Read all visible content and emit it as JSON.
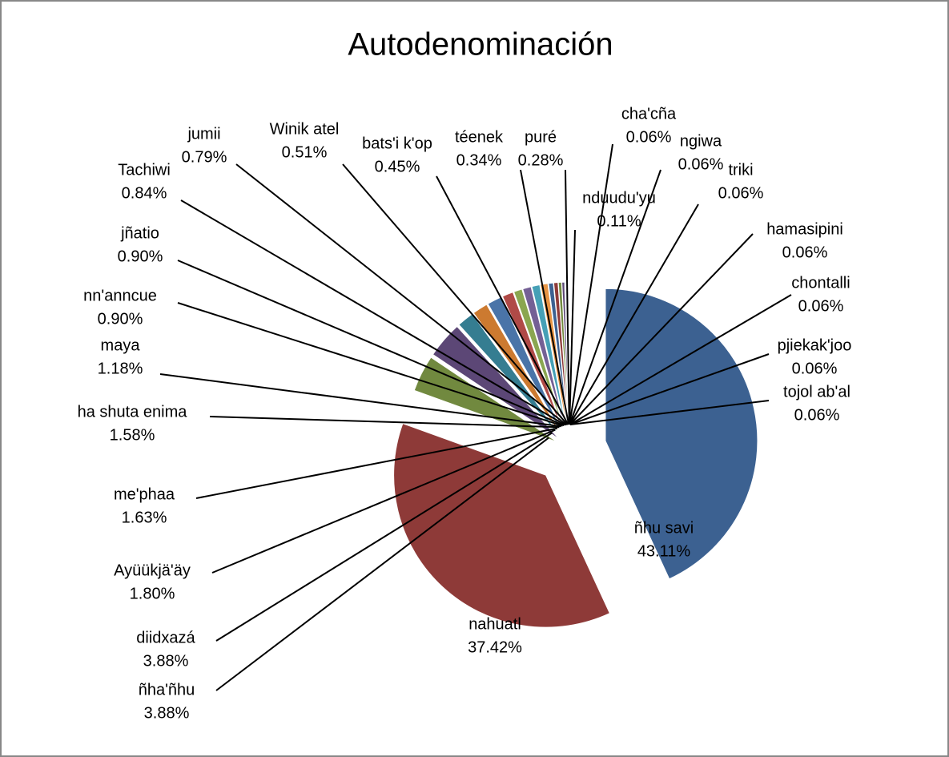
{
  "chart_data": {
    "type": "pie",
    "title": "Autodenominación",
    "categories": [
      "ñhu savi",
      "nahuatl",
      "ñha'ñhu",
      "diidxazá",
      "Ayüükjä'äy",
      "me'phaa",
      "ha shuta enima",
      "maya",
      "nn'anncue",
      "jñatio",
      "Tachiwi",
      "jumii",
      "Winik atel",
      "bats'i k'op",
      "téenek",
      "puré",
      "nduudu'yu",
      "cha'cña",
      "ngiwa",
      "triki",
      "hamasipini",
      "chontalli",
      "pjiekak'joo",
      "tojol ab'al"
    ],
    "values": [
      43.11,
      37.42,
      3.88,
      3.88,
      1.8,
      1.63,
      1.58,
      1.18,
      0.9,
      0.9,
      0.84,
      0.79,
      0.51,
      0.45,
      0.34,
      0.28,
      0.11,
      0.06,
      0.06,
      0.06,
      0.06,
      0.06,
      0.06,
      0.06
    ],
    "value_labels": [
      "43.11%",
      "37.42%",
      "3.88%",
      "3.88%",
      "1.80%",
      "1.63%",
      "1.58%",
      "1.18%",
      "0.90%",
      "0.90%",
      "0.84%",
      "0.79%",
      "0.51%",
      "0.45%",
      "0.34%",
      "0.28%",
      "0.11%",
      "0.06%",
      "0.06%",
      "0.06%",
      "0.06%",
      "0.06%",
      "0.06%",
      "0.06%"
    ],
    "colors": [
      "#3c6191",
      "#8e3a38",
      "#71893f",
      "#5c4776",
      "#357d91",
      "#cc7a30",
      "#4a74a8",
      "#b04a47",
      "#8aa650",
      "#7460951",
      "#46a0b6",
      "#e89545"
    ]
  }
}
